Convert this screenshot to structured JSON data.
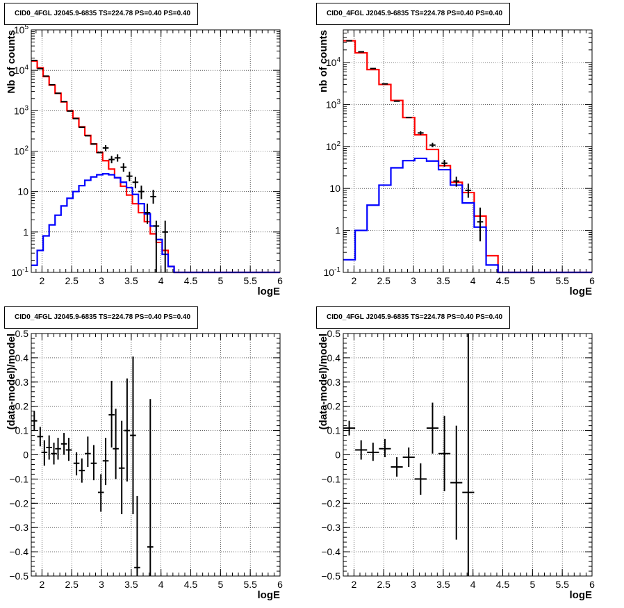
{
  "chart_data": [
    {
      "type": "line",
      "panel": "top-left",
      "title": "CID0_4FGL J2045.9-6835 TS=224.78 PS=0.40 PS=0.40",
      "xlabel": "logE",
      "ylabel": "Nb of counts",
      "ylog": true,
      "xlim": [
        1.82,
        6.0
      ],
      "ylim": [
        0.1,
        100000
      ],
      "xticks": [
        "2",
        "2.5",
        "3",
        "3.5",
        "4",
        "4.5",
        "5",
        "5.5",
        "6"
      ],
      "yticks": [
        "10^-1",
        "1",
        "10",
        "10^2",
        "10^3",
        "10^4",
        "10^5"
      ],
      "grid": true,
      "bin_edges": [
        1.82,
        1.92,
        2.02,
        2.12,
        2.22,
        2.32,
        2.42,
        2.52,
        2.62,
        2.72,
        2.82,
        2.92,
        3.02,
        3.12,
        3.22,
        3.32,
        3.42,
        3.52,
        3.62,
        3.72,
        3.82,
        3.92,
        4.02,
        4.12,
        4.22,
        4.32,
        4.42,
        4.52,
        4.62,
        4.72,
        4.82,
        4.92,
        5.02,
        5.12,
        5.22,
        5.32,
        5.42,
        5.52,
        5.62,
        5.72,
        5.82,
        5.92,
        6.0
      ],
      "series": [
        {
          "color": "#ff0000",
          "values": [
            17000,
            11500,
            7000,
            4300,
            2700,
            1650,
            1000,
            650,
            400,
            245,
            150,
            93,
            58,
            36,
            22,
            13.5,
            8.2,
            5,
            3,
            1.8,
            0.9,
            0.55,
            0.35,
            0.14,
            0.1,
            0.1,
            0.1,
            0.1,
            0.1,
            0.1,
            0.1,
            0.1,
            0.1,
            0.1,
            0.1,
            0.1,
            0.1,
            0.1,
            0.1,
            0.1,
            0.1,
            0.1
          ]
        },
        {
          "color": "#0000ff",
          "values": [
            0.15,
            0.35,
            0.8,
            1.5,
            2.6,
            4.4,
            6.8,
            10,
            14,
            19,
            23,
            26,
            27.5,
            26,
            22,
            17,
            12.5,
            8.5,
            5,
            2.8,
            1.4,
            0.65,
            0.28,
            0.14,
            0.1,
            0.1,
            0.1,
            0.1,
            0.1,
            0.1,
            0.1,
            0.1,
            0.1,
            0.1,
            0.1,
            0.1,
            0.1,
            0.1,
            0.1,
            0.1,
            0.1,
            0.1
          ]
        }
      ],
      "points": [
        {
          "x": 1.87,
          "y": 17500
        },
        {
          "x": 1.97,
          "y": 11000
        },
        {
          "x": 2.07,
          "y": 7200
        },
        {
          "x": 2.17,
          "y": 4400
        },
        {
          "x": 2.27,
          "y": 2700
        },
        {
          "x": 2.37,
          "y": 1680
        },
        {
          "x": 2.47,
          "y": 980
        },
        {
          "x": 2.57,
          "y": 640
        },
        {
          "x": 2.67,
          "y": 390
        },
        {
          "x": 2.77,
          "y": 240
        },
        {
          "x": 2.87,
          "y": 150
        },
        {
          "x": 2.97,
          "y": 92
        },
        {
          "x": 3.07,
          "y": 120,
          "ylo": 100,
          "yhi": 140
        },
        {
          "x": 3.17,
          "y": 62,
          "ylo": 50,
          "yhi": 76
        },
        {
          "x": 3.27,
          "y": 68,
          "ylo": 55,
          "yhi": 83
        },
        {
          "x": 3.37,
          "y": 40,
          "ylo": 31,
          "yhi": 50
        },
        {
          "x": 3.47,
          "y": 24,
          "ylo": 18,
          "yhi": 31
        },
        {
          "x": 3.57,
          "y": 17,
          "ylo": 12,
          "yhi": 23
        },
        {
          "x": 3.67,
          "y": 10,
          "ylo": 6.5,
          "yhi": 14
        },
        {
          "x": 3.77,
          "y": 3,
          "ylo": 1.6,
          "yhi": 5
        },
        {
          "x": 3.87,
          "y": 7.5,
          "ylo": 5,
          "yhi": 11
        },
        {
          "x": 3.92,
          "y": 1.4,
          "ylo": 0.1,
          "yhi": 1.9
        },
        {
          "x": 4.07,
          "y": 1.0,
          "ylo": 0.1,
          "yhi": 1.9
        }
      ]
    },
    {
      "type": "line",
      "panel": "top-right",
      "title": "CID0_4FGL J2045.9-6835 TS=224.78 PS=0.40 PS=0.40",
      "xlabel": "logE",
      "ylabel": "nb of counts",
      "ylog": true,
      "xlim": [
        1.82,
        6.0
      ],
      "ylim": [
        0.1,
        60000
      ],
      "xticks": [
        "2",
        "2.5",
        "3",
        "3.5",
        "4",
        "4.5",
        "5",
        "5.5",
        "6"
      ],
      "yticks": [
        "10^-1",
        "1",
        "10",
        "10^2",
        "10^3",
        "10^4"
      ],
      "grid": true,
      "bin_edges": [
        1.82,
        2.02,
        2.22,
        2.42,
        2.62,
        2.82,
        3.02,
        3.22,
        3.42,
        3.62,
        3.82,
        4.02,
        4.22,
        4.42,
        4.62,
        4.82,
        5.02,
        5.22,
        5.42,
        5.62,
        5.82,
        6.0
      ],
      "series": [
        {
          "color": "#ff0000",
          "values": [
            33000,
            17000,
            6800,
            3000,
            1250,
            490,
            190,
            85,
            35,
            14,
            8,
            2.2,
            0.25,
            0.1,
            0.1,
            0.1,
            0.1,
            0.1,
            0.1,
            0.1,
            0.1
          ]
        },
        {
          "color": "#0000ff",
          "values": [
            0.2,
            1.0,
            4.0,
            12,
            31,
            46,
            52,
            45,
            28,
            12,
            4.5,
            1.2,
            0.15,
            0.1,
            0.1,
            0.1,
            0.1,
            0.1,
            0.1,
            0.1,
            0.1
          ]
        }
      ],
      "points": [
        {
          "x": 1.92,
          "y": 33000
        },
        {
          "x": 2.12,
          "y": 18000
        },
        {
          "x": 2.32,
          "y": 7200
        },
        {
          "x": 2.52,
          "y": 3100
        },
        {
          "x": 2.72,
          "y": 1200
        },
        {
          "x": 2.92,
          "y": 490
        },
        {
          "x": 3.12,
          "y": 210,
          "ylo": 190,
          "yhi": 230
        },
        {
          "x": 3.32,
          "y": 108,
          "ylo": 96,
          "yhi": 122
        },
        {
          "x": 3.52,
          "y": 40,
          "ylo": 33,
          "yhi": 48
        },
        {
          "x": 3.72,
          "y": 15,
          "ylo": 11,
          "yhi": 19
        },
        {
          "x": 3.92,
          "y": 9,
          "ylo": 6,
          "yhi": 13
        },
        {
          "x": 4.12,
          "y": 1.6,
          "ylo": 0.55,
          "yhi": 3.5
        }
      ]
    },
    {
      "type": "scatter",
      "panel": "bottom-left",
      "title": "CID0_4FGL J2045.9-6835 TS=224.78 PS=0.40 PS=0.40",
      "xlabel": "logE",
      "ylabel": "(data-model)/model",
      "ylog": false,
      "xlim": [
        1.82,
        6.0
      ],
      "ylim": [
        -0.5,
        0.5
      ],
      "xticks": [
        "2",
        "2.5",
        "3",
        "3.5",
        "4",
        "4.5",
        "5",
        "5.5",
        "6"
      ],
      "yticks": [
        "-0.5",
        "-0.4",
        "-0.3",
        "-0.2",
        "-0.1",
        "0",
        "0.1",
        "0.2",
        "0.3",
        "0.4",
        "0.5"
      ],
      "grid": true,
      "points": [
        {
          "x": 1.87,
          "y": 0.14,
          "ylo": 0.1,
          "yhi": 0.18,
          "xerr": 0.05
        },
        {
          "x": 1.97,
          "y": 0.075,
          "ylo": 0.035,
          "yhi": 0.115,
          "xerr": 0.05
        },
        {
          "x": 2.04,
          "y": 0.01,
          "ylo": -0.045,
          "yhi": 0.06,
          "xerr": 0.05
        },
        {
          "x": 2.12,
          "y": 0.03,
          "ylo": -0.02,
          "yhi": 0.08,
          "xerr": 0.05
        },
        {
          "x": 2.2,
          "y": 0.005,
          "ylo": -0.04,
          "yhi": 0.05,
          "xerr": 0.05
        },
        {
          "x": 2.27,
          "y": 0.025,
          "ylo": -0.02,
          "yhi": 0.07,
          "xerr": 0.05
        },
        {
          "x": 2.37,
          "y": 0.045,
          "ylo": 0.0,
          "yhi": 0.09,
          "xerr": 0.05
        },
        {
          "x": 2.45,
          "y": 0.02,
          "ylo": -0.025,
          "yhi": 0.07,
          "xerr": 0.05
        },
        {
          "x": 2.58,
          "y": -0.035,
          "ylo": -0.085,
          "yhi": 0.01,
          "xerr": 0.05
        },
        {
          "x": 2.67,
          "y": -0.065,
          "ylo": -0.115,
          "yhi": -0.015,
          "xerr": 0.05
        },
        {
          "x": 2.77,
          "y": 0.005,
          "ylo": -0.05,
          "yhi": 0.075,
          "xerr": 0.05
        },
        {
          "x": 2.87,
          "y": -0.035,
          "ylo": -0.105,
          "yhi": 0.04,
          "xerr": 0.05
        },
        {
          "x": 2.99,
          "y": -0.155,
          "ylo": -0.235,
          "yhi": -0.08,
          "xerr": 0.05
        },
        {
          "x": 3.07,
          "y": -0.025,
          "ylo": -0.125,
          "yhi": 0.07,
          "xerr": 0.05
        },
        {
          "x": 3.17,
          "y": 0.165,
          "ylo": 0.03,
          "yhi": 0.305,
          "xerr": 0.05
        },
        {
          "x": 3.24,
          "y": 0.025,
          "ylo": -0.1,
          "yhi": 0.19,
          "xerr": 0.05
        },
        {
          "x": 3.34,
          "y": -0.055,
          "ylo": -0.245,
          "yhi": 0.14,
          "xerr": 0.05
        },
        {
          "x": 3.43,
          "y": 0.1,
          "ylo": -0.11,
          "yhi": 0.315,
          "xerr": 0.05
        },
        {
          "x": 3.53,
          "y": 0.08,
          "ylo": -0.245,
          "yhi": 0.405,
          "xerr": 0.05
        },
        {
          "x": 3.6,
          "y": -0.465,
          "ylo": -0.5,
          "yhi": -0.17,
          "xerr": 0.05
        },
        {
          "x": 3.82,
          "y": -0.38,
          "ylo": -0.5,
          "yhi": 0.23,
          "xerr": 0.05
        }
      ]
    },
    {
      "type": "scatter",
      "panel": "bottom-right",
      "title": "CID0_4FGL J2045.9-6835 TS=224.78 PS=0.40 PS=0.40",
      "xlabel": "logE",
      "ylabel": "(data-model)/model",
      "ylog": false,
      "xlim": [
        1.82,
        6.0
      ],
      "ylim": [
        -0.5,
        0.5
      ],
      "xticks": [
        "2",
        "2.5",
        "3",
        "3.5",
        "4",
        "4.5",
        "5",
        "5.5",
        "6"
      ],
      "yticks": [
        "-0.5",
        "-0.4",
        "-0.3",
        "-0.2",
        "-0.1",
        "0",
        "0.1",
        "0.2",
        "0.3",
        "0.4",
        "0.5"
      ],
      "grid": true,
      "points": [
        {
          "x": 1.92,
          "y": 0.11,
          "ylo": 0.08,
          "yhi": 0.14,
          "xerr": 0.1
        },
        {
          "x": 2.12,
          "y": 0.02,
          "ylo": -0.02,
          "yhi": 0.06,
          "xerr": 0.1
        },
        {
          "x": 2.32,
          "y": 0.01,
          "ylo": -0.025,
          "yhi": 0.05,
          "xerr": 0.1
        },
        {
          "x": 2.52,
          "y": 0.025,
          "ylo": -0.01,
          "yhi": 0.065,
          "xerr": 0.1
        },
        {
          "x": 2.72,
          "y": -0.05,
          "ylo": -0.09,
          "yhi": -0.01,
          "xerr": 0.1
        },
        {
          "x": 2.92,
          "y": -0.01,
          "ylo": -0.05,
          "yhi": 0.03,
          "xerr": 0.1
        },
        {
          "x": 3.12,
          "y": -0.1,
          "ylo": -0.165,
          "yhi": -0.035,
          "xerr": 0.1
        },
        {
          "x": 3.32,
          "y": 0.11,
          "ylo": 0.005,
          "yhi": 0.215,
          "xerr": 0.1
        },
        {
          "x": 3.52,
          "y": 0.005,
          "ylo": -0.15,
          "yhi": 0.16,
          "xerr": 0.1
        },
        {
          "x": 3.72,
          "y": -0.115,
          "ylo": -0.35,
          "yhi": 0.12,
          "xerr": 0.1
        },
        {
          "x": 3.92,
          "y": -0.155,
          "ylo": -0.5,
          "yhi": 0.5,
          "xerr": 0.1
        }
      ]
    }
  ]
}
